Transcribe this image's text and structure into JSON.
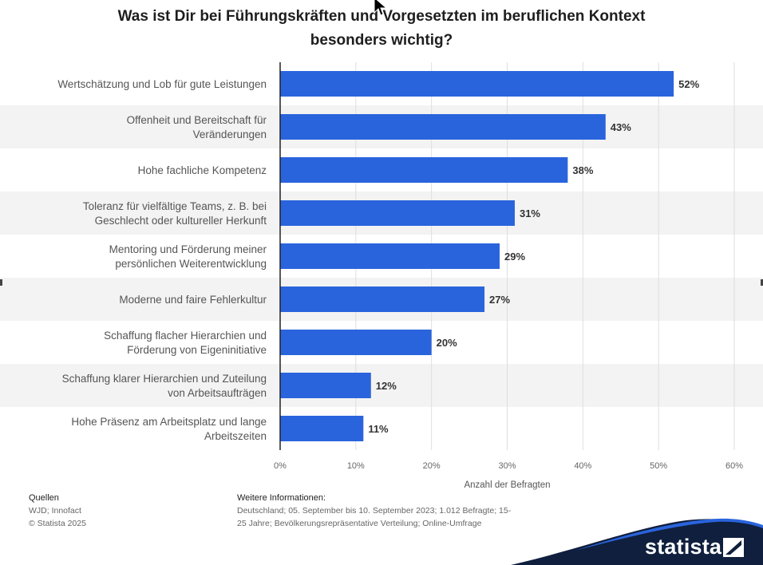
{
  "chart_data": {
    "type": "bar",
    "orientation": "horizontal",
    "title": "Was ist Dir bei Führungskräften und Vorgesetzten im beruflichen Kontext besonders wichtig?",
    "xlabel": "Anzahl der Befragten",
    "categories": [
      [
        "Wertschätzung und Lob für gute Leistungen"
      ],
      [
        "Offenheit und Bereitschaft für",
        "Veränderungen"
      ],
      [
        "Hohe fachliche Kompetenz"
      ],
      [
        "Toleranz für vielfältige Teams, z. B. bei",
        "Geschlecht oder kultureller Herkunft"
      ],
      [
        "Mentoring und Förderung meiner",
        "persönlichen Weiterentwicklung"
      ],
      [
        "Moderne und faire Fehlerkultur"
      ],
      [
        "Schaffung flacher Hierarchien und",
        "Förderung von Eigeninitiative"
      ],
      [
        "Schaffung klarer Hierarchien und Zuteilung",
        "von Arbeitsaufträgen"
      ],
      [
        "Hohe Präsenz am Arbeitsplatz und lange",
        "Arbeitszeiten"
      ]
    ],
    "values": [
      52,
      43,
      38,
      31,
      29,
      27,
      20,
      12,
      11
    ],
    "value_labels": [
      "52%",
      "43%",
      "38%",
      "31%",
      "29%",
      "27%",
      "20%",
      "12%",
      "11%"
    ],
    "xlim": [
      0,
      60
    ],
    "xticks": [
      0,
      10,
      20,
      30,
      40,
      50,
      60
    ],
    "xtick_labels": [
      "0%",
      "10%",
      "20%",
      "30%",
      "40%",
      "50%",
      "60%"
    ],
    "grid": true,
    "colors": {
      "bar": "#2a64dd",
      "band": "#f3f3f3",
      "grid": "#dedede"
    }
  },
  "footer": {
    "sources_heading": "Quellen",
    "sources_lines": [
      "WJD; Innofact",
      "© Statista 2025"
    ],
    "info_heading": "Weitere Informationen:",
    "info_lines": [
      "Deutschland; 05. September bis 10. September 2023; 1.012 Befragte; 15-",
      "25 Jahre; Bevölkerungsrepräsentative Verteilung; Online-Umfrage"
    ]
  },
  "brand": {
    "name": "statista",
    "color": "#0f1f3d"
  }
}
